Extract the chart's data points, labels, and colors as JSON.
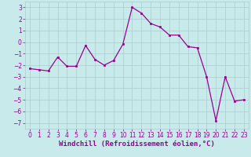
{
  "x": [
    0,
    1,
    2,
    3,
    4,
    5,
    6,
    7,
    8,
    9,
    10,
    11,
    12,
    13,
    14,
    15,
    16,
    17,
    18,
    19,
    20,
    21,
    22,
    23
  ],
  "y": [
    -2.3,
    -2.4,
    -2.5,
    -1.3,
    -2.1,
    -2.1,
    -0.3,
    -1.5,
    -2.0,
    -1.6,
    -0.2,
    3.0,
    2.5,
    1.6,
    1.3,
    0.6,
    0.6,
    -0.4,
    -0.5,
    -3.0,
    -6.8,
    -3.0,
    -5.1,
    -5.0
  ],
  "line_color": "#990099",
  "marker": "s",
  "marker_size": 2.0,
  "line_width": 0.9,
  "bg_color": "#c8eaea",
  "grid_color": "#aacccc",
  "xlabel": "Windchill (Refroidissement éolien,°C)",
  "xlabel_color": "#990099",
  "ylabel_ticks": [
    -7,
    -6,
    -5,
    -4,
    -3,
    -2,
    -1,
    0,
    1,
    2,
    3
  ],
  "xtick_labels": [
    "0",
    "1",
    "2",
    "3",
    "4",
    "5",
    "6",
    "7",
    "8",
    "9",
    "10",
    "11",
    "12",
    "13",
    "14",
    "15",
    "16",
    "17",
    "18",
    "19",
    "20",
    "21",
    "22",
    "23"
  ],
  "ylim": [
    -7.5,
    3.5
  ],
  "xlim": [
    -0.5,
    23.5
  ],
  "tick_color": "#990099",
  "tick_fontsize": 5.5,
  "xlabel_fontsize": 6.5
}
